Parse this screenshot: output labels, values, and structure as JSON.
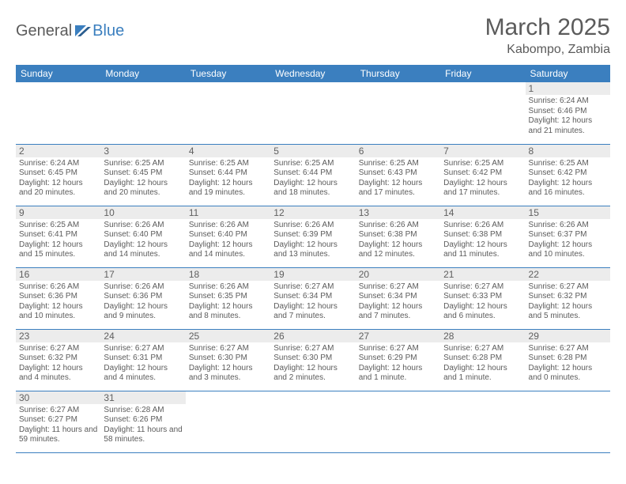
{
  "brand": {
    "name1": "General",
    "name2": "Blue"
  },
  "title": "March 2025",
  "location": "Kabompo, Zambia",
  "colors": {
    "header_bg": "#3b7fbf",
    "header_text": "#ffffff",
    "border": "#3b7fbf",
    "daynum_bg": "#ececec",
    "text": "#5b5b5b"
  },
  "days_of_week": [
    "Sunday",
    "Monday",
    "Tuesday",
    "Wednesday",
    "Thursday",
    "Friday",
    "Saturday"
  ],
  "weeks": [
    [
      null,
      null,
      null,
      null,
      null,
      null,
      {
        "n": "1",
        "sr": "6:24 AM",
        "ss": "6:46 PM",
        "dl": "12 hours and 21 minutes."
      }
    ],
    [
      {
        "n": "2",
        "sr": "6:24 AM",
        "ss": "6:45 PM",
        "dl": "12 hours and 20 minutes."
      },
      {
        "n": "3",
        "sr": "6:25 AM",
        "ss": "6:45 PM",
        "dl": "12 hours and 20 minutes."
      },
      {
        "n": "4",
        "sr": "6:25 AM",
        "ss": "6:44 PM",
        "dl": "12 hours and 19 minutes."
      },
      {
        "n": "5",
        "sr": "6:25 AM",
        "ss": "6:44 PM",
        "dl": "12 hours and 18 minutes."
      },
      {
        "n": "6",
        "sr": "6:25 AM",
        "ss": "6:43 PM",
        "dl": "12 hours and 17 minutes."
      },
      {
        "n": "7",
        "sr": "6:25 AM",
        "ss": "6:42 PM",
        "dl": "12 hours and 17 minutes."
      },
      {
        "n": "8",
        "sr": "6:25 AM",
        "ss": "6:42 PM",
        "dl": "12 hours and 16 minutes."
      }
    ],
    [
      {
        "n": "9",
        "sr": "6:25 AM",
        "ss": "6:41 PM",
        "dl": "12 hours and 15 minutes."
      },
      {
        "n": "10",
        "sr": "6:26 AM",
        "ss": "6:40 PM",
        "dl": "12 hours and 14 minutes."
      },
      {
        "n": "11",
        "sr": "6:26 AM",
        "ss": "6:40 PM",
        "dl": "12 hours and 14 minutes."
      },
      {
        "n": "12",
        "sr": "6:26 AM",
        "ss": "6:39 PM",
        "dl": "12 hours and 13 minutes."
      },
      {
        "n": "13",
        "sr": "6:26 AM",
        "ss": "6:38 PM",
        "dl": "12 hours and 12 minutes."
      },
      {
        "n": "14",
        "sr": "6:26 AM",
        "ss": "6:38 PM",
        "dl": "12 hours and 11 minutes."
      },
      {
        "n": "15",
        "sr": "6:26 AM",
        "ss": "6:37 PM",
        "dl": "12 hours and 10 minutes."
      }
    ],
    [
      {
        "n": "16",
        "sr": "6:26 AM",
        "ss": "6:36 PM",
        "dl": "12 hours and 10 minutes."
      },
      {
        "n": "17",
        "sr": "6:26 AM",
        "ss": "6:36 PM",
        "dl": "12 hours and 9 minutes."
      },
      {
        "n": "18",
        "sr": "6:26 AM",
        "ss": "6:35 PM",
        "dl": "12 hours and 8 minutes."
      },
      {
        "n": "19",
        "sr": "6:27 AM",
        "ss": "6:34 PM",
        "dl": "12 hours and 7 minutes."
      },
      {
        "n": "20",
        "sr": "6:27 AM",
        "ss": "6:34 PM",
        "dl": "12 hours and 7 minutes."
      },
      {
        "n": "21",
        "sr": "6:27 AM",
        "ss": "6:33 PM",
        "dl": "12 hours and 6 minutes."
      },
      {
        "n": "22",
        "sr": "6:27 AM",
        "ss": "6:32 PM",
        "dl": "12 hours and 5 minutes."
      }
    ],
    [
      {
        "n": "23",
        "sr": "6:27 AM",
        "ss": "6:32 PM",
        "dl": "12 hours and 4 minutes."
      },
      {
        "n": "24",
        "sr": "6:27 AM",
        "ss": "6:31 PM",
        "dl": "12 hours and 4 minutes."
      },
      {
        "n": "25",
        "sr": "6:27 AM",
        "ss": "6:30 PM",
        "dl": "12 hours and 3 minutes."
      },
      {
        "n": "26",
        "sr": "6:27 AM",
        "ss": "6:30 PM",
        "dl": "12 hours and 2 minutes."
      },
      {
        "n": "27",
        "sr": "6:27 AM",
        "ss": "6:29 PM",
        "dl": "12 hours and 1 minute."
      },
      {
        "n": "28",
        "sr": "6:27 AM",
        "ss": "6:28 PM",
        "dl": "12 hours and 1 minute."
      },
      {
        "n": "29",
        "sr": "6:27 AM",
        "ss": "6:28 PM",
        "dl": "12 hours and 0 minutes."
      }
    ],
    [
      {
        "n": "30",
        "sr": "6:27 AM",
        "ss": "6:27 PM",
        "dl": "11 hours and 59 minutes."
      },
      {
        "n": "31",
        "sr": "6:28 AM",
        "ss": "6:26 PM",
        "dl": "11 hours and 58 minutes."
      },
      null,
      null,
      null,
      null,
      null
    ]
  ],
  "labels": {
    "sunrise": "Sunrise:",
    "sunset": "Sunset:",
    "daylight": "Daylight:"
  }
}
